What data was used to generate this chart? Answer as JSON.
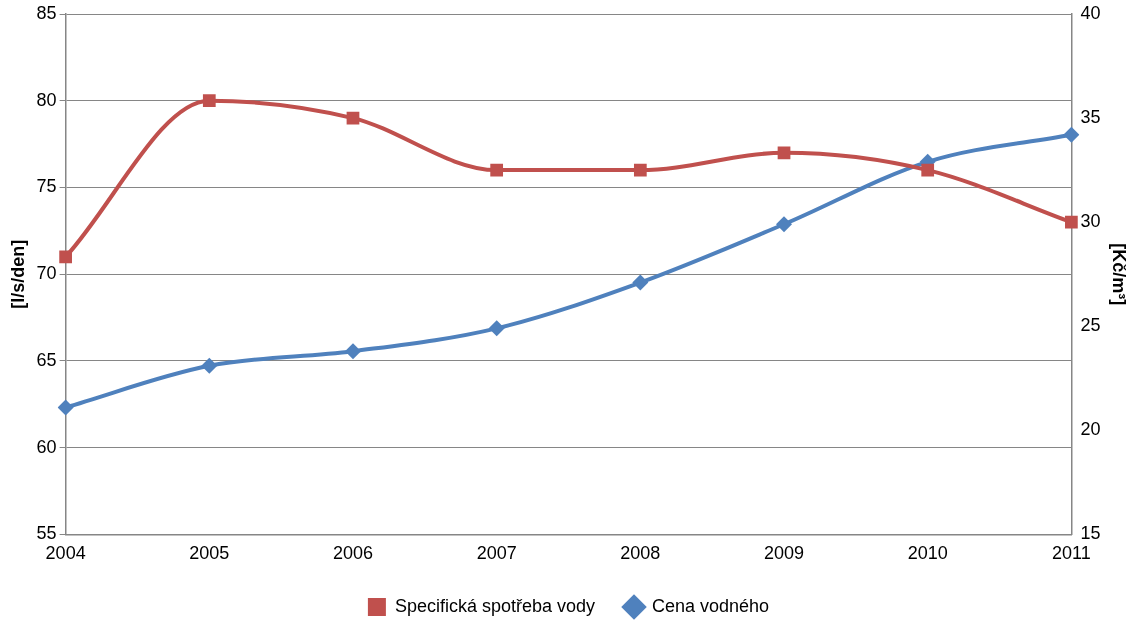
{
  "chart_data": {
    "type": "line",
    "categories": [
      "2004",
      "2005",
      "2006",
      "2007",
      "2008",
      "2009",
      "2010",
      "2011"
    ],
    "ylabel": "[l/s/den]",
    "y2label": "[Kč/m³]",
    "ylim": [
      55,
      85
    ],
    "yticks": [
      55,
      60,
      65,
      70,
      75,
      80,
      85
    ],
    "y2lim": [
      15,
      40
    ],
    "y2ticks": [
      15,
      20,
      25,
      30,
      35,
      40
    ],
    "grid": "y",
    "legend": "bottom",
    "line_style": "solid",
    "series": [
      {
        "name": "Specifická spotřeba vody",
        "color": "#c0504d",
        "marker": "square",
        "values": [
          71,
          80,
          79,
          76,
          76,
          77,
          76,
          73
        ]
      },
      {
        "name": "Cena vodného",
        "color": "#4f81bd",
        "marker": "diamond",
        "axis": "y2",
        "values": [
          21.1,
          23.1,
          23.8,
          24.9,
          27.1,
          29.9,
          32.9,
          34.2
        ]
      }
    ]
  }
}
